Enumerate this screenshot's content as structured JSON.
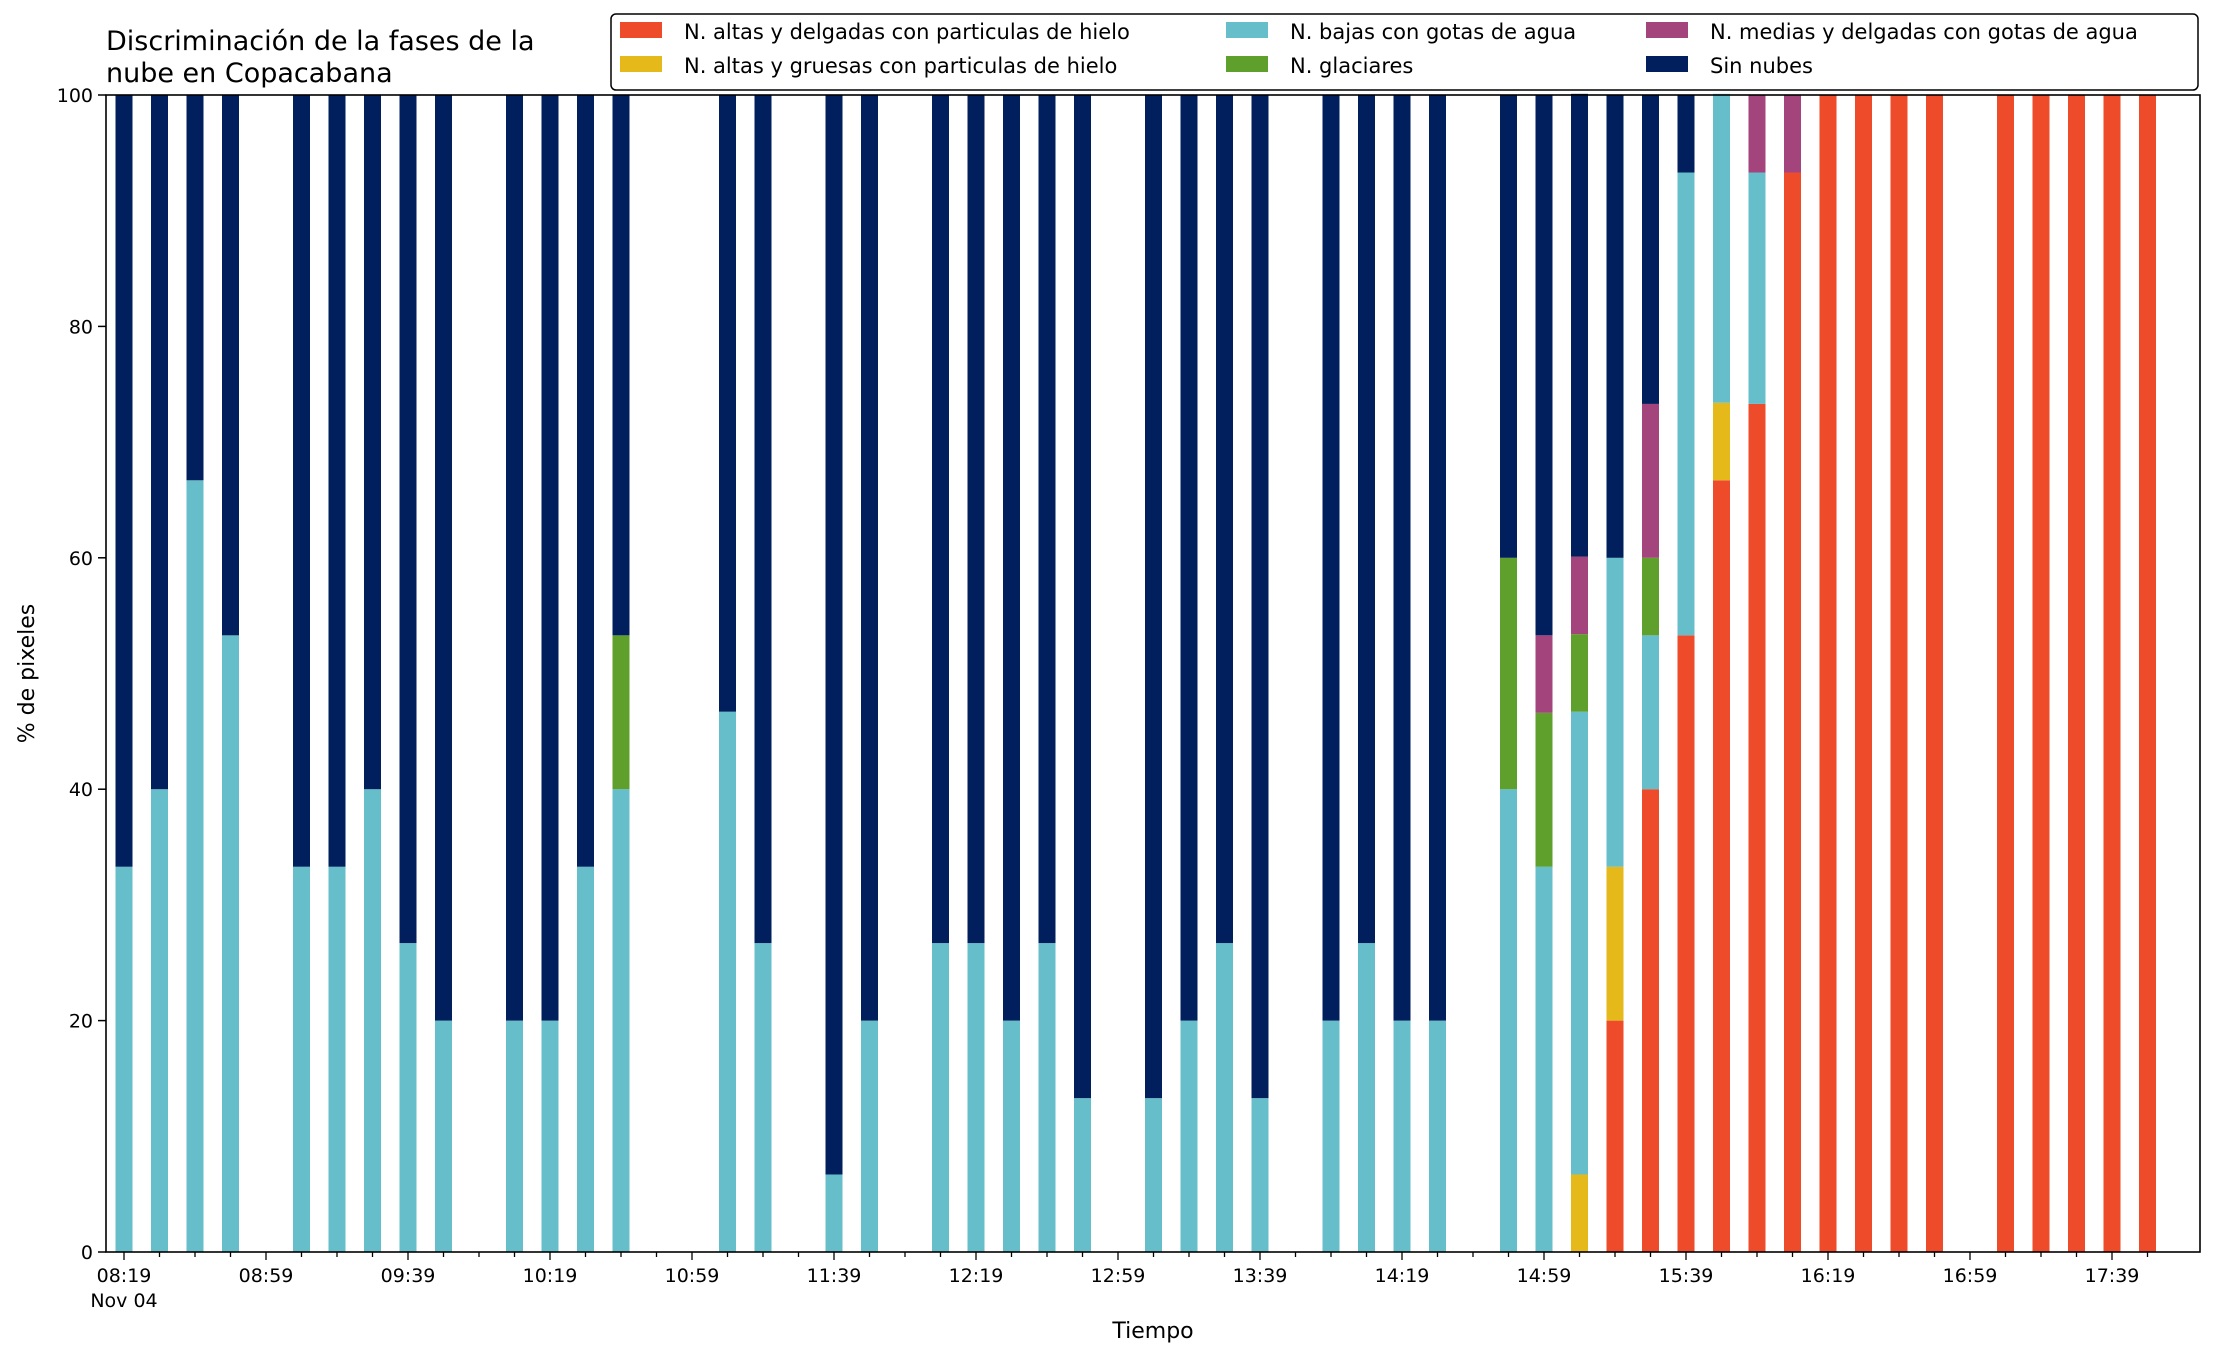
{
  "chart_data": {
    "type": "bar",
    "stacked": true,
    "title": "Discriminación de la fases de la\nnube en Copacabana",
    "xlabel": "Tiempo",
    "ylabel": "% de pixeles",
    "ylim": [
      0,
      100
    ],
    "yticks": [
      0,
      20,
      40,
      60,
      80,
      100
    ],
    "legend_position": "top-right",
    "grid": false,
    "x": [
      "08:19",
      "08:29",
      "08:39",
      "08:49",
      "08:59",
      "09:09",
      "09:19",
      "09:29",
      "09:39",
      "09:49",
      "09:59",
      "10:09",
      "10:19",
      "10:29",
      "10:39",
      "10:49",
      "10:59",
      "11:09",
      "11:19",
      "11:29",
      "11:39",
      "11:49",
      "11:59",
      "12:09",
      "12:19",
      "12:29",
      "12:39",
      "12:49",
      "12:59",
      "13:09",
      "13:19",
      "13:29",
      "13:39",
      "13:49",
      "13:59",
      "14:09",
      "14:19",
      "14:29",
      "14:39",
      "14:49",
      "14:59",
      "15:09",
      "15:19",
      "15:29",
      "15:39",
      "15:49",
      "15:59",
      "16:09",
      "16:19",
      "16:29",
      "16:39",
      "16:49",
      "16:59",
      "17:09",
      "17:19",
      "17:29",
      "17:39",
      "17:49"
    ],
    "xtick_labels": [
      {
        "x": "08:19",
        "label": "08:19",
        "sublabel": "Nov 04"
      },
      {
        "x": "08:59",
        "label": "08:59"
      },
      {
        "x": "09:39",
        "label": "09:39"
      },
      {
        "x": "10:19",
        "label": "10:19"
      },
      {
        "x": "10:59",
        "label": "10:59"
      },
      {
        "x": "11:39",
        "label": "11:39"
      },
      {
        "x": "12:19",
        "label": "12:19"
      },
      {
        "x": "12:59",
        "label": "12:59"
      },
      {
        "x": "13:39",
        "label": "13:39"
      },
      {
        "x": "14:19",
        "label": "14:19"
      },
      {
        "x": "14:59",
        "label": "14:59"
      },
      {
        "x": "15:39",
        "label": "15:39"
      },
      {
        "x": "16:19",
        "label": "16:19"
      },
      {
        "x": "16:59",
        "label": "16:59"
      },
      {
        "x": "17:39",
        "label": "17:39"
      }
    ],
    "series": [
      {
        "name": "N. altas y delgadas con particulas de hielo",
        "color": "#ee4b2b",
        "values": [
          0,
          0,
          0,
          0,
          null,
          0,
          0,
          0,
          0,
          0,
          null,
          0,
          0,
          0,
          0,
          null,
          null,
          0,
          0,
          null,
          0,
          0,
          null,
          0,
          0,
          0,
          0,
          0,
          null,
          0,
          0,
          0,
          0,
          null,
          0,
          0,
          0,
          0,
          null,
          0,
          0,
          0,
          20,
          40,
          53.3,
          66.7,
          73.3,
          93.3,
          100,
          100,
          100,
          100,
          null,
          100,
          100,
          100,
          100,
          100
        ]
      },
      {
        "name": "N. altas y gruesas con particulas de hielo",
        "color": "#e5b91a",
        "values": [
          0,
          0,
          0,
          0,
          null,
          0,
          0,
          0,
          0,
          0,
          null,
          0,
          0,
          0,
          0,
          null,
          null,
          0,
          0,
          null,
          0,
          0,
          null,
          0,
          0,
          0,
          0,
          0,
          null,
          0,
          0,
          0,
          0,
          null,
          0,
          0,
          0,
          0,
          null,
          0,
          0,
          6.7,
          13.3,
          0,
          0,
          6.7,
          0,
          0,
          0,
          0,
          0,
          0,
          null,
          0,
          0,
          0,
          0,
          0
        ]
      },
      {
        "name": "N. bajas con gotas de agua",
        "color": "#65bec9",
        "values": [
          33.3,
          40,
          66.7,
          53.3,
          null,
          33.3,
          33.3,
          40,
          26.7,
          20,
          null,
          20,
          20,
          33.3,
          40,
          null,
          null,
          46.7,
          26.7,
          null,
          6.7,
          20,
          null,
          26.7,
          26.7,
          20,
          26.7,
          13.3,
          null,
          13.3,
          20,
          26.7,
          13.3,
          null,
          20,
          26.7,
          20,
          20,
          null,
          40,
          33.3,
          40,
          26.7,
          13.3,
          40,
          26.7,
          20,
          0,
          0,
          0,
          0,
          0,
          null,
          0,
          0,
          0,
          0,
          0
        ]
      },
      {
        "name": "N. glaciares",
        "color": "#5f9f2b",
        "values": [
          0,
          0,
          0,
          0,
          null,
          0,
          0,
          0,
          0,
          0,
          null,
          0,
          0,
          0,
          13.3,
          null,
          null,
          0,
          0,
          null,
          0,
          0,
          null,
          0,
          0,
          0,
          0,
          0,
          null,
          0,
          0,
          0,
          0,
          null,
          0,
          0,
          0,
          0,
          null,
          20,
          13.3,
          6.7,
          0,
          6.7,
          0,
          0,
          0,
          0,
          0,
          0,
          0,
          0,
          null,
          0,
          0,
          0,
          0,
          0
        ]
      },
      {
        "name": "N. medias y delgadas con gotas de agua",
        "color": "#a3457c",
        "values": [
          0,
          0,
          0,
          0,
          null,
          0,
          0,
          0,
          0,
          0,
          null,
          0,
          0,
          0,
          0,
          null,
          null,
          0,
          0,
          null,
          0,
          0,
          null,
          0,
          0,
          0,
          0,
          0,
          null,
          0,
          0,
          0,
          0,
          null,
          0,
          0,
          0,
          0,
          null,
          0,
          6.7,
          6.7,
          0,
          13.3,
          0,
          0,
          6.7,
          6.7,
          0,
          0,
          0,
          0,
          null,
          0,
          0,
          0,
          0,
          0
        ]
      },
      {
        "name": "Sin nubes",
        "color": "#001f5c",
        "values": [
          66.7,
          60,
          33.3,
          46.7,
          null,
          66.7,
          66.7,
          60,
          73.3,
          80,
          null,
          80,
          80,
          66.7,
          46.7,
          null,
          null,
          53.3,
          73.3,
          null,
          93.3,
          80,
          null,
          73.3,
          73.3,
          80,
          73.3,
          86.7,
          null,
          86.7,
          80,
          73.3,
          86.7,
          null,
          80,
          73.3,
          80,
          80,
          null,
          40,
          46.7,
          40,
          40,
          26.7,
          6.7,
          0,
          0,
          0,
          0,
          0,
          0,
          0,
          null,
          0,
          0,
          0,
          0,
          0
        ]
      }
    ]
  }
}
